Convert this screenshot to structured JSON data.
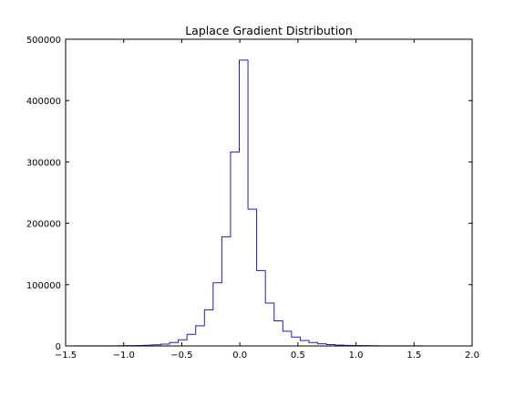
{
  "chart_data": {
    "type": "line",
    "title": "Laplace Gradient Distribution",
    "xlabel": "",
    "ylabel": "",
    "xlim": [
      -1.5,
      2.0
    ],
    "ylim": [
      0,
      500000
    ],
    "x_ticks": [
      -1.5,
      -1.0,
      -0.5,
      0.0,
      0.5,
      1.0,
      1.5,
      2.0
    ],
    "x_tick_labels": [
      "−1.5",
      "−1.0",
      "−0.5",
      "0.0",
      "0.5",
      "1.0",
      "1.5",
      "2.0"
    ],
    "y_ticks": [
      0,
      100000,
      200000,
      300000,
      400000,
      500000
    ],
    "y_tick_labels": [
      "0",
      "100000",
      "200000",
      "300000",
      "400000",
      "500000"
    ],
    "grid": false,
    "line_color": "#1f1fb4",
    "series": [
      {
        "bin_edges": [
          -1.43,
          -1.355,
          -1.28,
          -1.205,
          -1.13,
          -1.055,
          -0.98,
          -0.905,
          -0.83,
          -0.755,
          -0.68,
          -0.605,
          -0.53,
          -0.455,
          -0.38,
          -0.305,
          -0.23,
          -0.155,
          -0.08,
          -0.005,
          0.07,
          0.145,
          0.22,
          0.295,
          0.37,
          0.445,
          0.52,
          0.595,
          0.67,
          0.745,
          0.82,
          0.895,
          0.97,
          1.045,
          1.12,
          1.195,
          1.27,
          1.345,
          1.42,
          1.495,
          1.57
        ],
        "counts": [
          100,
          120,
          150,
          200,
          250,
          350,
          500,
          800,
          1200,
          1800,
          3000,
          5500,
          10000,
          19000,
          33000,
          59000,
          103000,
          178000,
          316000,
          466000,
          223000,
          123000,
          70000,
          41000,
          24000,
          14500,
          9000,
          5500,
          3500,
          2200,
          1500,
          1000,
          700,
          500,
          350,
          250,
          200,
          150,
          120,
          100
        ]
      }
    ]
  }
}
